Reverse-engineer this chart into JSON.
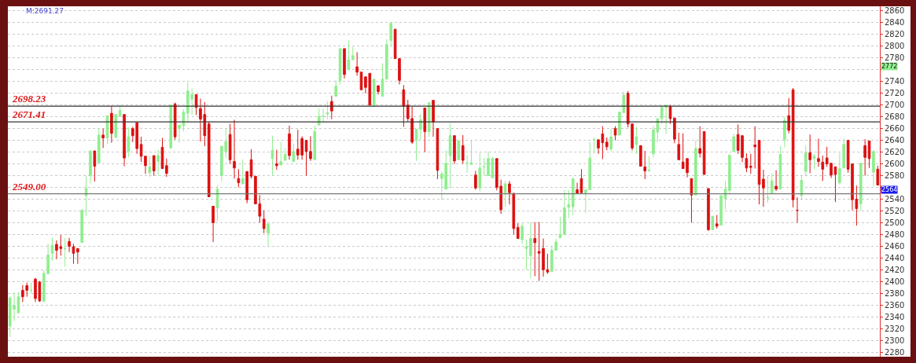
{
  "chart_data": {
    "type": "candlestick",
    "categories": [
      null,
      null,
      null,
      null,
      null,
      null,
      null,
      null,
      null,
      null,
      null,
      null,
      null,
      null,
      null,
      null,
      null,
      null,
      null,
      null,
      null,
      null,
      null,
      null,
      null,
      null,
      null,
      null,
      null,
      null,
      null,
      null,
      null,
      null,
      null,
      null,
      null,
      null,
      null,
      null,
      null,
      null,
      null,
      null,
      null,
      null,
      null,
      null,
      null,
      null,
      null,
      null,
      null,
      null,
      null,
      null,
      null,
      null,
      null,
      null,
      null,
      null,
      null,
      null,
      null,
      null,
      null,
      null,
      null,
      null,
      null,
      null,
      null,
      null,
      null,
      null,
      null,
      null,
      null,
      null,
      null,
      null,
      null,
      null,
      null,
      null,
      null,
      null,
      null,
      null,
      null,
      null,
      null,
      null,
      null,
      null,
      null,
      null,
      null,
      null,
      null,
      null,
      null,
      null,
      null,
      null,
      null,
      null,
      null,
      null,
      null,
      null,
      null,
      null,
      null,
      null,
      null,
      null,
      null,
      null,
      null,
      null,
      null,
      null,
      null,
      null,
      null,
      null,
      null,
      null,
      null,
      null,
      null,
      null,
      null,
      null,
      null,
      null,
      null,
      null,
      null,
      null,
      null,
      null,
      null,
      null,
      null,
      null,
      null,
      null,
      null,
      null,
      null,
      null,
      null,
      null,
      null,
      null,
      null,
      null,
      null,
      null,
      null,
      null,
      null,
      null,
      null,
      null,
      null,
      null,
      null,
      null,
      null,
      null,
      null,
      null,
      null,
      null,
      null,
      null,
      null,
      null,
      null,
      null,
      null,
      null,
      null,
      null,
      null,
      null,
      null,
      null,
      null,
      null,
      null,
      null,
      null,
      null,
      null,
      null,
      null,
      null,
      null,
      null,
      null,
      null
    ],
    "ohlc": [
      [
        2324,
        2374,
        2306,
        2372
      ],
      [
        2353,
        2381,
        2333,
        2359
      ],
      [
        2347,
        2381,
        2345,
        2374
      ],
      [
        2385,
        2394,
        2365,
        2374
      ],
      [
        2393,
        2398,
        2374,
        2385
      ],
      [
        2385,
        2398,
        2380,
        2385
      ],
      [
        2404,
        2406,
        2365,
        2371
      ],
      [
        2399,
        2401,
        2365,
        2367
      ],
      [
        2366,
        2419,
        2366,
        2414
      ],
      [
        2413,
        2464,
        2413,
        2445
      ],
      [
        2448,
        2475,
        2435,
        2461
      ],
      [
        2463,
        2470,
        2438,
        2453
      ],
      [
        2459,
        2479,
        2444,
        2456
      ],
      [
        2456,
        2474,
        2425,
        2456
      ],
      [
        2468,
        2474,
        2450,
        2460
      ],
      [
        2459,
        2464,
        2430,
        2448
      ],
      [
        2456,
        2456,
        2430,
        2450
      ],
      [
        2466,
        2523,
        2466,
        2521
      ],
      [
        2546,
        2580,
        2511,
        2558
      ],
      [
        2580,
        2622,
        2567,
        2622
      ],
      [
        2622,
        2622,
        2570,
        2596
      ],
      [
        2602,
        2660,
        2602,
        2649
      ],
      [
        2649,
        2660,
        2627,
        2644
      ],
      [
        2644,
        2682,
        2634,
        2682
      ],
      [
        2686,
        2698,
        2636,
        2652
      ],
      [
        2645,
        2684,
        2645,
        2684
      ],
      [
        2681,
        2701,
        2680,
        2691
      ],
      [
        2684,
        2684,
        2596,
        2610
      ],
      [
        2621,
        2662,
        2611,
        2646
      ],
      [
        2660,
        2663,
        2637,
        2648
      ],
      [
        2670,
        2670,
        2617,
        2626
      ],
      [
        2633,
        2646,
        2603,
        2613
      ],
      [
        2613,
        2613,
        2583,
        2597
      ],
      [
        2585,
        2613,
        2578,
        2595
      ],
      [
        2614,
        2614,
        2580,
        2588
      ],
      [
        2604,
        2624,
        2580,
        2614
      ],
      [
        2628,
        2644,
        2592,
        2592
      ],
      [
        2597,
        2609,
        2578,
        2584
      ],
      [
        2627,
        2701,
        2627,
        2700
      ],
      [
        2702,
        2704,
        2641,
        2646
      ],
      [
        2660,
        2666,
        2636,
        2666
      ],
      [
        2665,
        2693,
        2655,
        2688
      ],
      [
        2686,
        2738,
        2670,
        2724
      ],
      [
        2710,
        2728,
        2683,
        2718
      ],
      [
        2718,
        2718,
        2683,
        2696
      ],
      [
        2694,
        2711,
        2638,
        2676
      ],
      [
        2684,
        2705,
        2630,
        2648
      ],
      [
        2668,
        2672,
        2544,
        2544
      ],
      [
        2528,
        2528,
        2467,
        2500
      ],
      [
        2525,
        2563,
        2502,
        2557
      ],
      [
        2580,
        2630,
        2570,
        2630
      ],
      [
        2621,
        2660,
        2610,
        2638
      ],
      [
        2650,
        2668,
        2600,
        2607
      ],
      [
        2604,
        2675,
        2575,
        2593
      ],
      [
        2575,
        2591,
        2560,
        2568
      ],
      [
        2566,
        2607,
        2566,
        2575
      ],
      [
        2587,
        2587,
        2533,
        2539
      ],
      [
        2607,
        2625,
        2575,
        2579
      ],
      [
        2579,
        2579,
        2532,
        2532
      ],
      [
        2532,
        2547,
        2500,
        2511
      ],
      [
        2506,
        2521,
        2482,
        2490
      ],
      [
        2482,
        2498,
        2461,
        2498
      ],
      [
        2609,
        2648,
        2580,
        2623
      ],
      [
        2600,
        2624,
        2590,
        2597
      ],
      [
        2598,
        2637,
        2598,
        2604
      ],
      [
        2606,
        2626,
        2606,
        2616
      ],
      [
        2651,
        2665,
        2607,
        2614
      ],
      [
        2604,
        2634,
        2604,
        2621
      ],
      [
        2625,
        2658,
        2607,
        2615
      ],
      [
        2643,
        2647,
        2607,
        2615
      ],
      [
        2640,
        2640,
        2580,
        2621
      ],
      [
        2621,
        2647,
        2605,
        2609
      ],
      [
        2607,
        2665,
        2607,
        2655
      ],
      [
        2666,
        2694,
        2666,
        2681
      ],
      [
        2681,
        2694,
        2670,
        2681
      ],
      [
        2685,
        2706,
        2676,
        2687
      ],
      [
        2706,
        2716,
        2676,
        2690
      ],
      [
        2715,
        2742,
        2715,
        2732
      ],
      [
        2742,
        2796,
        2735,
        2796
      ],
      [
        2796,
        2796,
        2745,
        2752
      ],
      [
        2760,
        2810,
        2760,
        2777
      ],
      [
        2777,
        2799,
        2777,
        2784
      ],
      [
        2765,
        2790,
        2750,
        2756
      ],
      [
        2756,
        2756,
        2726,
        2726
      ],
      [
        2748,
        2748,
        2720,
        2730
      ],
      [
        2754,
        2754,
        2700,
        2700
      ],
      [
        2699,
        2744,
        2697,
        2744
      ],
      [
        2733,
        2733,
        2718,
        2723
      ],
      [
        2715,
        2771,
        2715,
        2744
      ],
      [
        2744,
        2812,
        2744,
        2803
      ],
      [
        2810,
        2839,
        2801,
        2839
      ],
      [
        2829,
        2829,
        2779,
        2779
      ],
      [
        2779,
        2779,
        2735,
        2742
      ],
      [
        2726,
        2734,
        2663,
        2698
      ],
      [
        2700,
        2709,
        2672,
        2677
      ],
      [
        2677,
        2697,
        2634,
        2637
      ],
      [
        2640,
        2659,
        2605,
        2659
      ],
      [
        2659,
        2685,
        2641,
        2675
      ],
      [
        2695,
        2695,
        2620,
        2655
      ],
      [
        2655,
        2704,
        2646,
        2704
      ],
      [
        2708,
        2708,
        2646,
        2671
      ],
      [
        2660,
        2660,
        2574,
        2589
      ],
      [
        2575,
        2587,
        2539,
        2583
      ],
      [
        2557,
        2623,
        2557,
        2601
      ],
      [
        2614,
        2669,
        2558,
        2648
      ],
      [
        2648,
        2648,
        2600,
        2605
      ],
      [
        2607,
        2639,
        2607,
        2639
      ],
      [
        2631,
        2649,
        2600,
        2606
      ],
      [
        2601,
        2615,
        2585,
        2601
      ],
      [
        2599,
        2640,
        2599,
        2602
      ],
      [
        2581,
        2588,
        2556,
        2559
      ],
      [
        2559,
        2619,
        2553,
        2593
      ],
      [
        2595,
        2610,
        2580,
        2595
      ],
      [
        2580,
        2621,
        2580,
        2609
      ],
      [
        2576,
        2612,
        2576,
        2609
      ],
      [
        2609,
        2609,
        2555,
        2560
      ],
      [
        2562,
        2573,
        2515,
        2522
      ],
      [
        2549,
        2571,
        2527,
        2566
      ],
      [
        2566,
        2571,
        2531,
        2551
      ],
      [
        2550,
        2550,
        2480,
        2490
      ],
      [
        2492,
        2499,
        2473,
        2473
      ],
      [
        2471,
        2499,
        2464,
        2494
      ],
      [
        2456,
        2471,
        2420,
        2459
      ],
      [
        2444,
        2501,
        2405,
        2473
      ],
      [
        2473,
        2501,
        2409,
        2466
      ],
      [
        2451,
        2501,
        2401,
        2448
      ],
      [
        2456,
        2473,
        2408,
        2420
      ],
      [
        2420,
        2447,
        2413,
        2416
      ],
      [
        2417,
        2460,
        2417,
        2453
      ],
      [
        2453,
        2473,
        2453,
        2467
      ],
      [
        2474,
        2510,
        2474,
        2480
      ],
      [
        2480,
        2556,
        2480,
        2525
      ],
      [
        2526,
        2556,
        2508,
        2531
      ],
      [
        2527,
        2575,
        2513,
        2575
      ],
      [
        2556,
        2568,
        2550,
        2550
      ],
      [
        2575,
        2591,
        2551,
        2551
      ],
      [
        2550,
        2556,
        2516,
        2556
      ],
      [
        2556,
        2637,
        2556,
        2610
      ],
      [
        2641,
        2645,
        2618,
        2641
      ],
      [
        2641,
        2641,
        2617,
        2627
      ],
      [
        2651,
        2664,
        2608,
        2636
      ],
      [
        2637,
        2645,
        2623,
        2629
      ],
      [
        2625,
        2660,
        2621,
        2646
      ],
      [
        2660,
        2664,
        2640,
        2649
      ],
      [
        2649,
        2688,
        2649,
        2688
      ],
      [
        2687,
        2723,
        2687,
        2717
      ],
      [
        2720,
        2724,
        2662,
        2668
      ],
      [
        2668,
        2668,
        2623,
        2627
      ],
      [
        2633,
        2663,
        2617,
        2646
      ],
      [
        2631,
        2631,
        2596,
        2596
      ],
      [
        2595,
        2622,
        2574,
        2588
      ],
      [
        2588,
        2613,
        2588,
        2589
      ],
      [
        2617,
        2665,
        2611,
        2658
      ],
      [
        2654,
        2677,
        2637,
        2677
      ],
      [
        2677,
        2700,
        2668,
        2696
      ],
      [
        2696,
        2700,
        2651,
        2700
      ],
      [
        2697,
        2700,
        2668,
        2677
      ],
      [
        2678,
        2678,
        2635,
        2642
      ],
      [
        2633,
        2653,
        2607,
        2607
      ],
      [
        2603,
        2652,
        2592,
        2592
      ],
      [
        2609,
        2609,
        2577,
        2585
      ],
      [
        2575,
        2575,
        2500,
        2547
      ],
      [
        2547,
        2640,
        2547,
        2626
      ],
      [
        2626,
        2664,
        2611,
        2618
      ],
      [
        2655,
        2655,
        2582,
        2582
      ],
      [
        2558,
        2558,
        2486,
        2488
      ],
      [
        2488,
        2511,
        2488,
        2511
      ],
      [
        2498,
        2513,
        2490,
        2494
      ],
      [
        2496,
        2546,
        2496,
        2546
      ],
      [
        2541,
        2571,
        2523,
        2557
      ],
      [
        2555,
        2615,
        2549,
        2615
      ],
      [
        2621,
        2651,
        2621,
        2646
      ],
      [
        2650,
        2667,
        2617,
        2623
      ],
      [
        2648,
        2648,
        2603,
        2611
      ],
      [
        2609,
        2618,
        2586,
        2593
      ],
      [
        2596,
        2617,
        2583,
        2594
      ],
      [
        2632,
        2664,
        2592,
        2629
      ],
      [
        2640,
        2640,
        2531,
        2565
      ],
      [
        2574,
        2590,
        2527,
        2559
      ],
      [
        2542,
        2580,
        2534,
        2543
      ],
      [
        2550,
        2584,
        2550,
        2571
      ],
      [
        2562,
        2589,
        2554,
        2557
      ],
      [
        2557,
        2630,
        2557,
        2616
      ],
      [
        2641,
        2680,
        2628,
        2674
      ],
      [
        2682,
        2712,
        2652,
        2657
      ],
      [
        2726,
        2729,
        2526,
        2539
      ],
      [
        2521,
        2543,
        2500,
        2521
      ],
      [
        2546,
        2580,
        2538,
        2572
      ],
      [
        2587,
        2631,
        2579,
        2619
      ],
      [
        2619,
        2650,
        2584,
        2607
      ],
      [
        2609,
        2617,
        2591,
        2613
      ],
      [
        2609,
        2643,
        2595,
        2604
      ],
      [
        2603,
        2614,
        2571,
        2591
      ],
      [
        2610,
        2629,
        2595,
        2600
      ],
      [
        2601,
        2601,
        2576,
        2581
      ],
      [
        2595,
        2595,
        2535,
        2582
      ],
      [
        2568,
        2618,
        2565,
        2592
      ],
      [
        2593,
        2643,
        2593,
        2633
      ],
      [
        2640,
        2640,
        2585,
        2591
      ],
      [
        2600,
        2600,
        2521,
        2539
      ],
      [
        2540,
        2563,
        2495,
        2524
      ],
      [
        2532,
        2601,
        2520,
        2601
      ],
      [
        2631,
        2642,
        2580,
        2611
      ],
      [
        2639,
        2639,
        2593,
        2609
      ],
      [
        2586,
        2624,
        2562,
        2621
      ],
      [
        2591,
        2597,
        2564,
        2564
      ]
    ],
    "colors": [
      "#90ee90",
      "#90ee90",
      "#90ee90",
      "#dd1111",
      "#dd1111",
      "#90ee90",
      "#dd1111",
      "#dd1111",
      "#90ee90",
      "#90ee90",
      "#90ee90",
      "#dd1111",
      "#dd1111",
      "#90ee90",
      "#dd1111",
      "#dd1111",
      "#dd1111",
      "#90ee90",
      "#90ee90",
      "#90ee90",
      "#dd1111",
      "#90ee90",
      "#dd1111",
      "#90ee90",
      "#dd1111",
      "#90ee90",
      "#90ee90",
      "#dd1111",
      "#90ee90",
      "#dd1111",
      "#dd1111",
      "#dd1111",
      "#dd1111",
      "#90ee90",
      "#dd1111",
      "#90ee90",
      "#dd1111",
      "#dd1111",
      "#90ee90",
      "#dd1111",
      "#90ee90",
      "#90ee90",
      "#90ee90",
      "#90ee90",
      "#dd1111",
      "#dd1111",
      "#dd1111",
      "#dd1111",
      "#dd1111",
      "#90ee90",
      "#90ee90",
      "#90ee90",
      "#dd1111",
      "#dd1111",
      "#dd1111",
      "#90ee90",
      "#dd1111",
      "#dd1111",
      "#dd1111",
      "#dd1111",
      "#dd1111",
      "#90ee90",
      "#90ee90",
      "#dd1111",
      "#90ee90",
      "#90ee90",
      "#dd1111",
      "#90ee90",
      "#dd1111",
      "#dd1111",
      "#dd1111",
      "#dd1111",
      "#90ee90",
      "#90ee90",
      "#90ee90",
      "#90ee90",
      "#dd1111",
      "#90ee90",
      "#90ee90",
      "#dd1111",
      "#90ee90",
      "#90ee90",
      "#dd1111",
      "#dd1111",
      "#dd1111",
      "#dd1111",
      "#90ee90",
      "#dd1111",
      "#90ee90",
      "#90ee90",
      "#90ee90",
      "#dd1111",
      "#dd1111",
      "#dd1111",
      "#dd1111",
      "#dd1111",
      "#90ee90",
      "#90ee90",
      "#dd1111",
      "#90ee90",
      "#dd1111",
      "#dd1111",
      "#90ee90",
      "#90ee90",
      "#90ee90",
      "#dd1111",
      "#90ee90",
      "#dd1111",
      "#90ee90",
      "#90ee90",
      "#dd1111",
      "#90ee90",
      "#90ee90",
      "#90ee90",
      "#90ee90",
      "#dd1111",
      "#dd1111",
      "#90ee90",
      "#dd1111",
      "#dd1111",
      "#dd1111",
      "#90ee90",
      "#90ee90",
      "#90ee90",
      "#dd1111",
      "#dd1111",
      "#dd1111",
      "#dd1111",
      "#90ee90",
      "#90ee90",
      "#90ee90",
      "#90ee90",
      "#90ee90",
      "#90ee90",
      "#dd1111",
      "#dd1111",
      "#90ee90",
      "#90ee90",
      "#90ee90",
      "#dd1111",
      "#dd1111",
      "#dd1111",
      "#90ee90",
      "#dd1111",
      "#90ee90",
      "#90ee90",
      "#dd1111",
      "#dd1111",
      "#90ee90",
      "#dd1111",
      "#dd1111",
      "#90ee90",
      "#90ee90",
      "#90ee90",
      "#90ee90",
      "#90ee90",
      "#dd1111",
      "#dd1111",
      "#dd1111",
      "#dd1111",
      "#dd1111",
      "#dd1111",
      "#90ee90",
      "#dd1111",
      "#dd1111",
      "#dd1111",
      "#90ee90",
      "#dd1111",
      "#90ee90",
      "#90ee90",
      "#90ee90",
      "#90ee90",
      "#dd1111",
      "#dd1111",
      "#dd1111",
      "#dd1111",
      "#dd1111",
      "#dd1111",
      "#dd1111",
      "#90ee90",
      "#90ee90",
      "#dd1111",
      "#90ee90",
      "#90ee90",
      "#dd1111",
      "#dd1111",
      "#dd1111",
      "#90ee90",
      "#90ee90",
      "#dd1111",
      "#90ee90",
      "#dd1111",
      "#dd1111",
      "#dd1111",
      "#dd1111",
      "#dd1111",
      "#90ee90",
      "#90ee90",
      "#dd1111",
      "#dd1111",
      "#dd1111",
      "#90ee90",
      "#dd1111",
      "#dd1111",
      "#90ee90",
      "#dd1111"
    ],
    "ylim": [
      2272,
      2868
    ],
    "yticks": [
      2280,
      2300,
      2320,
      2340,
      2360,
      2380,
      2400,
      2420,
      2440,
      2460,
      2480,
      2500,
      2520,
      2540,
      {
        "value": 2560,
        "label": null
      },
      2580,
      2600,
      2620,
      2640,
      2660,
      2680,
      2700,
      2720,
      2740,
      {
        "value": 2760,
        "label": null
      },
      2780,
      2800,
      2820,
      2840,
      2860
    ],
    "tick_labels": "y",
    "grid": "y",
    "legend": false,
    "ref_lines": [
      {
        "axis": "y",
        "value": 2698.23,
        "label": "2698.23",
        "color": "#333333"
      },
      {
        "axis": "y",
        "value": 2671.41,
        "label": "2671.41",
        "color": "#333333"
      },
      {
        "axis": "y",
        "value": 2549.0,
        "label": "2549.00",
        "color": "#777777"
      }
    ],
    "annotations": [
      "M:2691.27",
      "2772",
      "2564"
    ]
  }
}
